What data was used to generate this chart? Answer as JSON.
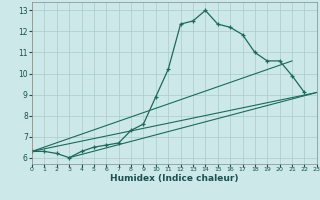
{
  "xlabel": "Humidex (Indice chaleur)",
  "x_values": [
    0,
    1,
    2,
    3,
    4,
    5,
    6,
    7,
    8,
    9,
    10,
    11,
    12,
    13,
    14,
    15,
    16,
    17,
    18,
    19,
    20,
    21,
    22,
    23
  ],
  "line1_y": [
    6.3,
    6.3,
    6.2,
    6.0,
    6.3,
    6.5,
    6.6,
    6.7,
    7.3,
    7.6,
    8.9,
    10.2,
    12.35,
    12.5,
    13.0,
    12.35,
    12.2,
    11.85,
    11.0,
    10.6,
    10.6,
    9.9,
    9.1,
    null
  ],
  "line2_x": [
    0,
    23
  ],
  "line2_y": [
    6.3,
    9.1
  ],
  "line3_x": [
    3,
    23
  ],
  "line3_y": [
    6.0,
    9.1
  ],
  "line4_x": [
    0,
    21
  ],
  "line4_y": [
    6.3,
    10.6
  ],
  "bg_color": "#cce8e8",
  "grid_color": "#aacccc",
  "line_color": "#1a6b5a",
  "ylim": [
    5.7,
    13.4
  ],
  "xlim": [
    0,
    23
  ],
  "yticks": [
    6,
    7,
    8,
    9,
    10,
    11,
    12,
    13
  ],
  "xticks": [
    0,
    1,
    2,
    3,
    4,
    5,
    6,
    7,
    8,
    9,
    10,
    11,
    12,
    13,
    14,
    15,
    16,
    17,
    18,
    19,
    20,
    21,
    22,
    23
  ],
  "tick_fontsize": 5.5,
  "xlabel_fontsize": 6.5
}
